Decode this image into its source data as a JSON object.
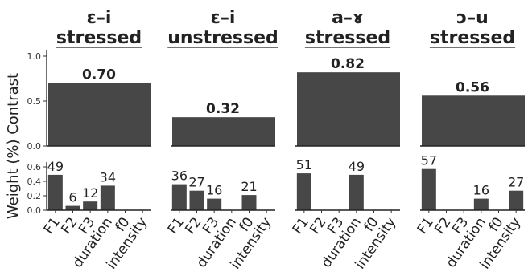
{
  "chart_data": {
    "type": "bar",
    "ylabel": "Weight (%) Contrast",
    "bar_color": "#474747",
    "contrast_ylim": [
      0,
      1.0
    ],
    "contrast_ticks": [
      "0.0",
      "0.5",
      "1.0"
    ],
    "weight_ylim": [
      0,
      0.6
    ],
    "weight_ticks": [
      "0.0",
      "0.2",
      "0.4",
      "0.6"
    ],
    "cues": [
      "F1",
      "F2",
      "F3",
      "duration",
      "f0",
      "intensity"
    ],
    "panels": [
      {
        "title_line1": "ɛ–i",
        "title_line2": "stressed",
        "contrast": 0.7,
        "contrast_label": "0.70",
        "weights": [
          0.49,
          0.06,
          0.12,
          0.34,
          null,
          null
        ],
        "weight_labels": [
          "49",
          "6",
          "12",
          "34",
          "",
          ""
        ]
      },
      {
        "title_line1": "ɛ–i",
        "title_line2": "unstressed",
        "contrast": 0.32,
        "contrast_label": "0.32",
        "weights": [
          0.36,
          0.27,
          0.16,
          null,
          0.21,
          null
        ],
        "weight_labels": [
          "36",
          "27",
          "16",
          "",
          "21",
          ""
        ]
      },
      {
        "title_line1": "a–ɤ",
        "title_line2": "stressed",
        "contrast": 0.82,
        "contrast_label": "0.82",
        "weights": [
          0.51,
          null,
          null,
          0.49,
          null,
          null
        ],
        "weight_labels": [
          "51",
          "",
          "",
          "49",
          "",
          ""
        ]
      },
      {
        "title_line1": "ɔ–u",
        "title_line2": "stressed",
        "contrast": 0.56,
        "contrast_label": "0.56",
        "weights": [
          0.57,
          null,
          null,
          0.16,
          null,
          0.27
        ],
        "weight_labels": [
          "57",
          "",
          "",
          "16",
          "",
          "27"
        ]
      }
    ]
  }
}
